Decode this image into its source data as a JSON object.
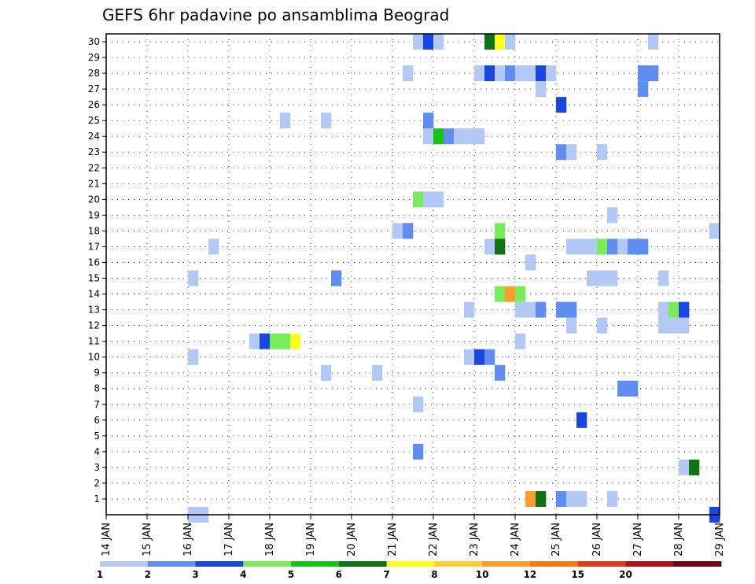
{
  "chart_data": {
    "type": "heatmap",
    "title": "GEFS 6hr padavine po ansamblima Beograd",
    "x_unit": "day of January (6-hourly steps)",
    "xlim": [
      14,
      29
    ],
    "ylim": [
      0,
      30.5
    ],
    "y_ticks": [
      1,
      2,
      3,
      4,
      5,
      6,
      7,
      8,
      9,
      10,
      11,
      12,
      13,
      14,
      15,
      16,
      17,
      18,
      19,
      20,
      21,
      22,
      23,
      24,
      25,
      26,
      27,
      28,
      29,
      30
    ],
    "x_ticks": [
      "14 JAN",
      "15 JAN",
      "16 JAN",
      "17 JAN",
      "18 JAN",
      "19 JAN",
      "20 JAN",
      "21 JAN",
      "22 JAN",
      "23 JAN",
      "24 JAN",
      "25 JAN",
      "26 JAN",
      "27 JAN",
      "28 JAN",
      "29 JAN"
    ],
    "x_tick_values": [
      14,
      15,
      16,
      17,
      18,
      19,
      20,
      21,
      22,
      23,
      24,
      25,
      26,
      27,
      28,
      29
    ],
    "grid": true,
    "colorbar": {
      "labels": [
        "1",
        "2",
        "3",
        "4",
        "5",
        "6",
        "7",
        "8",
        "10",
        "12",
        "15",
        "20"
      ],
      "colors": [
        "#b3c8f5",
        "#5f8ef0",
        "#1a46e0",
        "#78ec5a",
        "#16c416",
        "#0f7313",
        "#ffff1f",
        "#ffcc33",
        "#ff9c2e",
        "#f47a14",
        "#e13c1a",
        "#b0121d",
        "#6e0910"
      ]
    },
    "cells": [
      {
        "m": 30,
        "x": 21.5,
        "c": 0
      },
      {
        "m": 30,
        "x": 21.75,
        "c": 2
      },
      {
        "m": 30,
        "x": 22.0,
        "c": 0
      },
      {
        "m": 30,
        "x": 23.25,
        "c": 5
      },
      {
        "m": 30,
        "x": 23.5,
        "c": 6
      },
      {
        "m": 30,
        "x": 23.75,
        "c": 0
      },
      {
        "m": 30,
        "x": 27.25,
        "c": 0
      },
      {
        "m": 28,
        "x": 21.25,
        "c": 0
      },
      {
        "m": 28,
        "x": 23.0,
        "c": 0
      },
      {
        "m": 28,
        "x": 23.25,
        "c": 2
      },
      {
        "m": 28,
        "x": 23.5,
        "c": 0
      },
      {
        "m": 28,
        "x": 23.75,
        "c": 1
      },
      {
        "m": 28,
        "x": 24.0,
        "c": 0
      },
      {
        "m": 28,
        "x": 24.25,
        "c": 0
      },
      {
        "m": 28,
        "x": 24.5,
        "c": 2
      },
      {
        "m": 28,
        "x": 24.75,
        "c": 0
      },
      {
        "m": 28,
        "x": 27.0,
        "c": 1
      },
      {
        "m": 28,
        "x": 27.25,
        "c": 1
      },
      {
        "m": 27,
        "x": 24.5,
        "c": 0
      },
      {
        "m": 27,
        "x": 27.0,
        "c": 1
      },
      {
        "m": 26,
        "x": 25.0,
        "c": 2
      },
      {
        "m": 25,
        "x": 18.25,
        "c": 0
      },
      {
        "m": 25,
        "x": 19.25,
        "c": 0
      },
      {
        "m": 25,
        "x": 21.75,
        "c": 1
      },
      {
        "m": 24,
        "x": 21.75,
        "c": 0
      },
      {
        "m": 24,
        "x": 22.0,
        "c": 4
      },
      {
        "m": 24,
        "x": 22.25,
        "c": 1
      },
      {
        "m": 24,
        "x": 22.5,
        "c": 0
      },
      {
        "m": 24,
        "x": 22.75,
        "c": 0
      },
      {
        "m": 24,
        "x": 23.0,
        "c": 0
      },
      {
        "m": 23,
        "x": 25.0,
        "c": 1
      },
      {
        "m": 23,
        "x": 25.25,
        "c": 0
      },
      {
        "m": 23,
        "x": 26.0,
        "c": 0
      },
      {
        "m": 20,
        "x": 21.5,
        "c": 3
      },
      {
        "m": 20,
        "x": 21.75,
        "c": 0
      },
      {
        "m": 20,
        "x": 22.0,
        "c": 0
      },
      {
        "m": 19,
        "x": 26.25,
        "c": 0
      },
      {
        "m": 18,
        "x": 21.0,
        "c": 0
      },
      {
        "m": 18,
        "x": 21.25,
        "c": 1
      },
      {
        "m": 18,
        "x": 23.5,
        "c": 3
      },
      {
        "m": 18,
        "x": 28.75,
        "c": 0
      },
      {
        "m": 17,
        "x": 16.5,
        "c": 0
      },
      {
        "m": 17,
        "x": 23.25,
        "c": 0
      },
      {
        "m": 17,
        "x": 23.5,
        "c": 5
      },
      {
        "m": 17,
        "x": 25.25,
        "c": 0
      },
      {
        "m": 17,
        "x": 25.5,
        "c": 0
      },
      {
        "m": 17,
        "x": 25.75,
        "c": 0
      },
      {
        "m": 17,
        "x": 26.0,
        "c": 3
      },
      {
        "m": 17,
        "x": 26.25,
        "c": 1
      },
      {
        "m": 17,
        "x": 26.5,
        "c": 0
      },
      {
        "m": 17,
        "x": 26.75,
        "c": 1
      },
      {
        "m": 17,
        "x": 27.0,
        "c": 1
      },
      {
        "m": 16,
        "x": 24.25,
        "c": 0
      },
      {
        "m": 15,
        "x": 16.0,
        "c": 0
      },
      {
        "m": 15,
        "x": 19.5,
        "c": 1
      },
      {
        "m": 15,
        "x": 25.75,
        "c": 0
      },
      {
        "m": 15,
        "x": 26.0,
        "c": 0
      },
      {
        "m": 15,
        "x": 26.25,
        "c": 0
      },
      {
        "m": 15,
        "x": 27.5,
        "c": 0
      },
      {
        "m": 14,
        "x": 23.5,
        "c": 3
      },
      {
        "m": 14,
        "x": 23.75,
        "c": 8
      },
      {
        "m": 14,
        "x": 24.0,
        "c": 3
      },
      {
        "m": 13,
        "x": 22.75,
        "c": 0
      },
      {
        "m": 13,
        "x": 24.0,
        "c": 0
      },
      {
        "m": 13,
        "x": 24.25,
        "c": 0
      },
      {
        "m": 13,
        "x": 24.5,
        "c": 1
      },
      {
        "m": 13,
        "x": 25.0,
        "c": 1
      },
      {
        "m": 13,
        "x": 25.25,
        "c": 1
      },
      {
        "m": 13,
        "x": 27.5,
        "c": 0
      },
      {
        "m": 13,
        "x": 27.75,
        "c": 3
      },
      {
        "m": 13,
        "x": 28.0,
        "c": 2
      },
      {
        "m": 12,
        "x": 25.25,
        "c": 0
      },
      {
        "m": 12,
        "x": 26.0,
        "c": 0
      },
      {
        "m": 12,
        "x": 27.5,
        "c": 0
      },
      {
        "m": 12,
        "x": 27.75,
        "c": 0
      },
      {
        "m": 12,
        "x": 28.0,
        "c": 0
      },
      {
        "m": 11,
        "x": 17.5,
        "c": 0
      },
      {
        "m": 11,
        "x": 17.75,
        "c": 2
      },
      {
        "m": 11,
        "x": 18.0,
        "c": 3
      },
      {
        "m": 11,
        "x": 18.25,
        "c": 3
      },
      {
        "m": 11,
        "x": 18.5,
        "c": 6
      },
      {
        "m": 11,
        "x": 24.0,
        "c": 0
      },
      {
        "m": 10,
        "x": 16.0,
        "c": 0
      },
      {
        "m": 10,
        "x": 22.75,
        "c": 0
      },
      {
        "m": 10,
        "x": 23.0,
        "c": 2
      },
      {
        "m": 10,
        "x": 23.25,
        "c": 1
      },
      {
        "m": 9,
        "x": 19.25,
        "c": 0
      },
      {
        "m": 9,
        "x": 20.5,
        "c": 0
      },
      {
        "m": 9,
        "x": 23.5,
        "c": 1
      },
      {
        "m": 8,
        "x": 26.5,
        "c": 1
      },
      {
        "m": 8,
        "x": 26.75,
        "c": 1
      },
      {
        "m": 7,
        "x": 21.5,
        "c": 0
      },
      {
        "m": 6,
        "x": 25.5,
        "c": 2
      },
      {
        "m": 4,
        "x": 21.5,
        "c": 1
      },
      {
        "m": 3,
        "x": 28.0,
        "c": 0
      },
      {
        "m": 3,
        "x": 28.25,
        "c": 5
      },
      {
        "m": 1,
        "x": 24.25,
        "c": 8
      },
      {
        "m": 1,
        "x": 24.5,
        "c": 5
      },
      {
        "m": 1,
        "x": 25.0,
        "c": 1
      },
      {
        "m": 1,
        "x": 25.25,
        "c": 0
      },
      {
        "m": 1,
        "x": 25.5,
        "c": 0
      },
      {
        "m": 1,
        "x": 26.25,
        "c": 0
      },
      {
        "m": 0,
        "x": 16.0,
        "c": 0
      },
      {
        "m": 0,
        "x": 16.25,
        "c": 0
      },
      {
        "m": 0,
        "x": 28.75,
        "c": 2
      }
    ]
  }
}
